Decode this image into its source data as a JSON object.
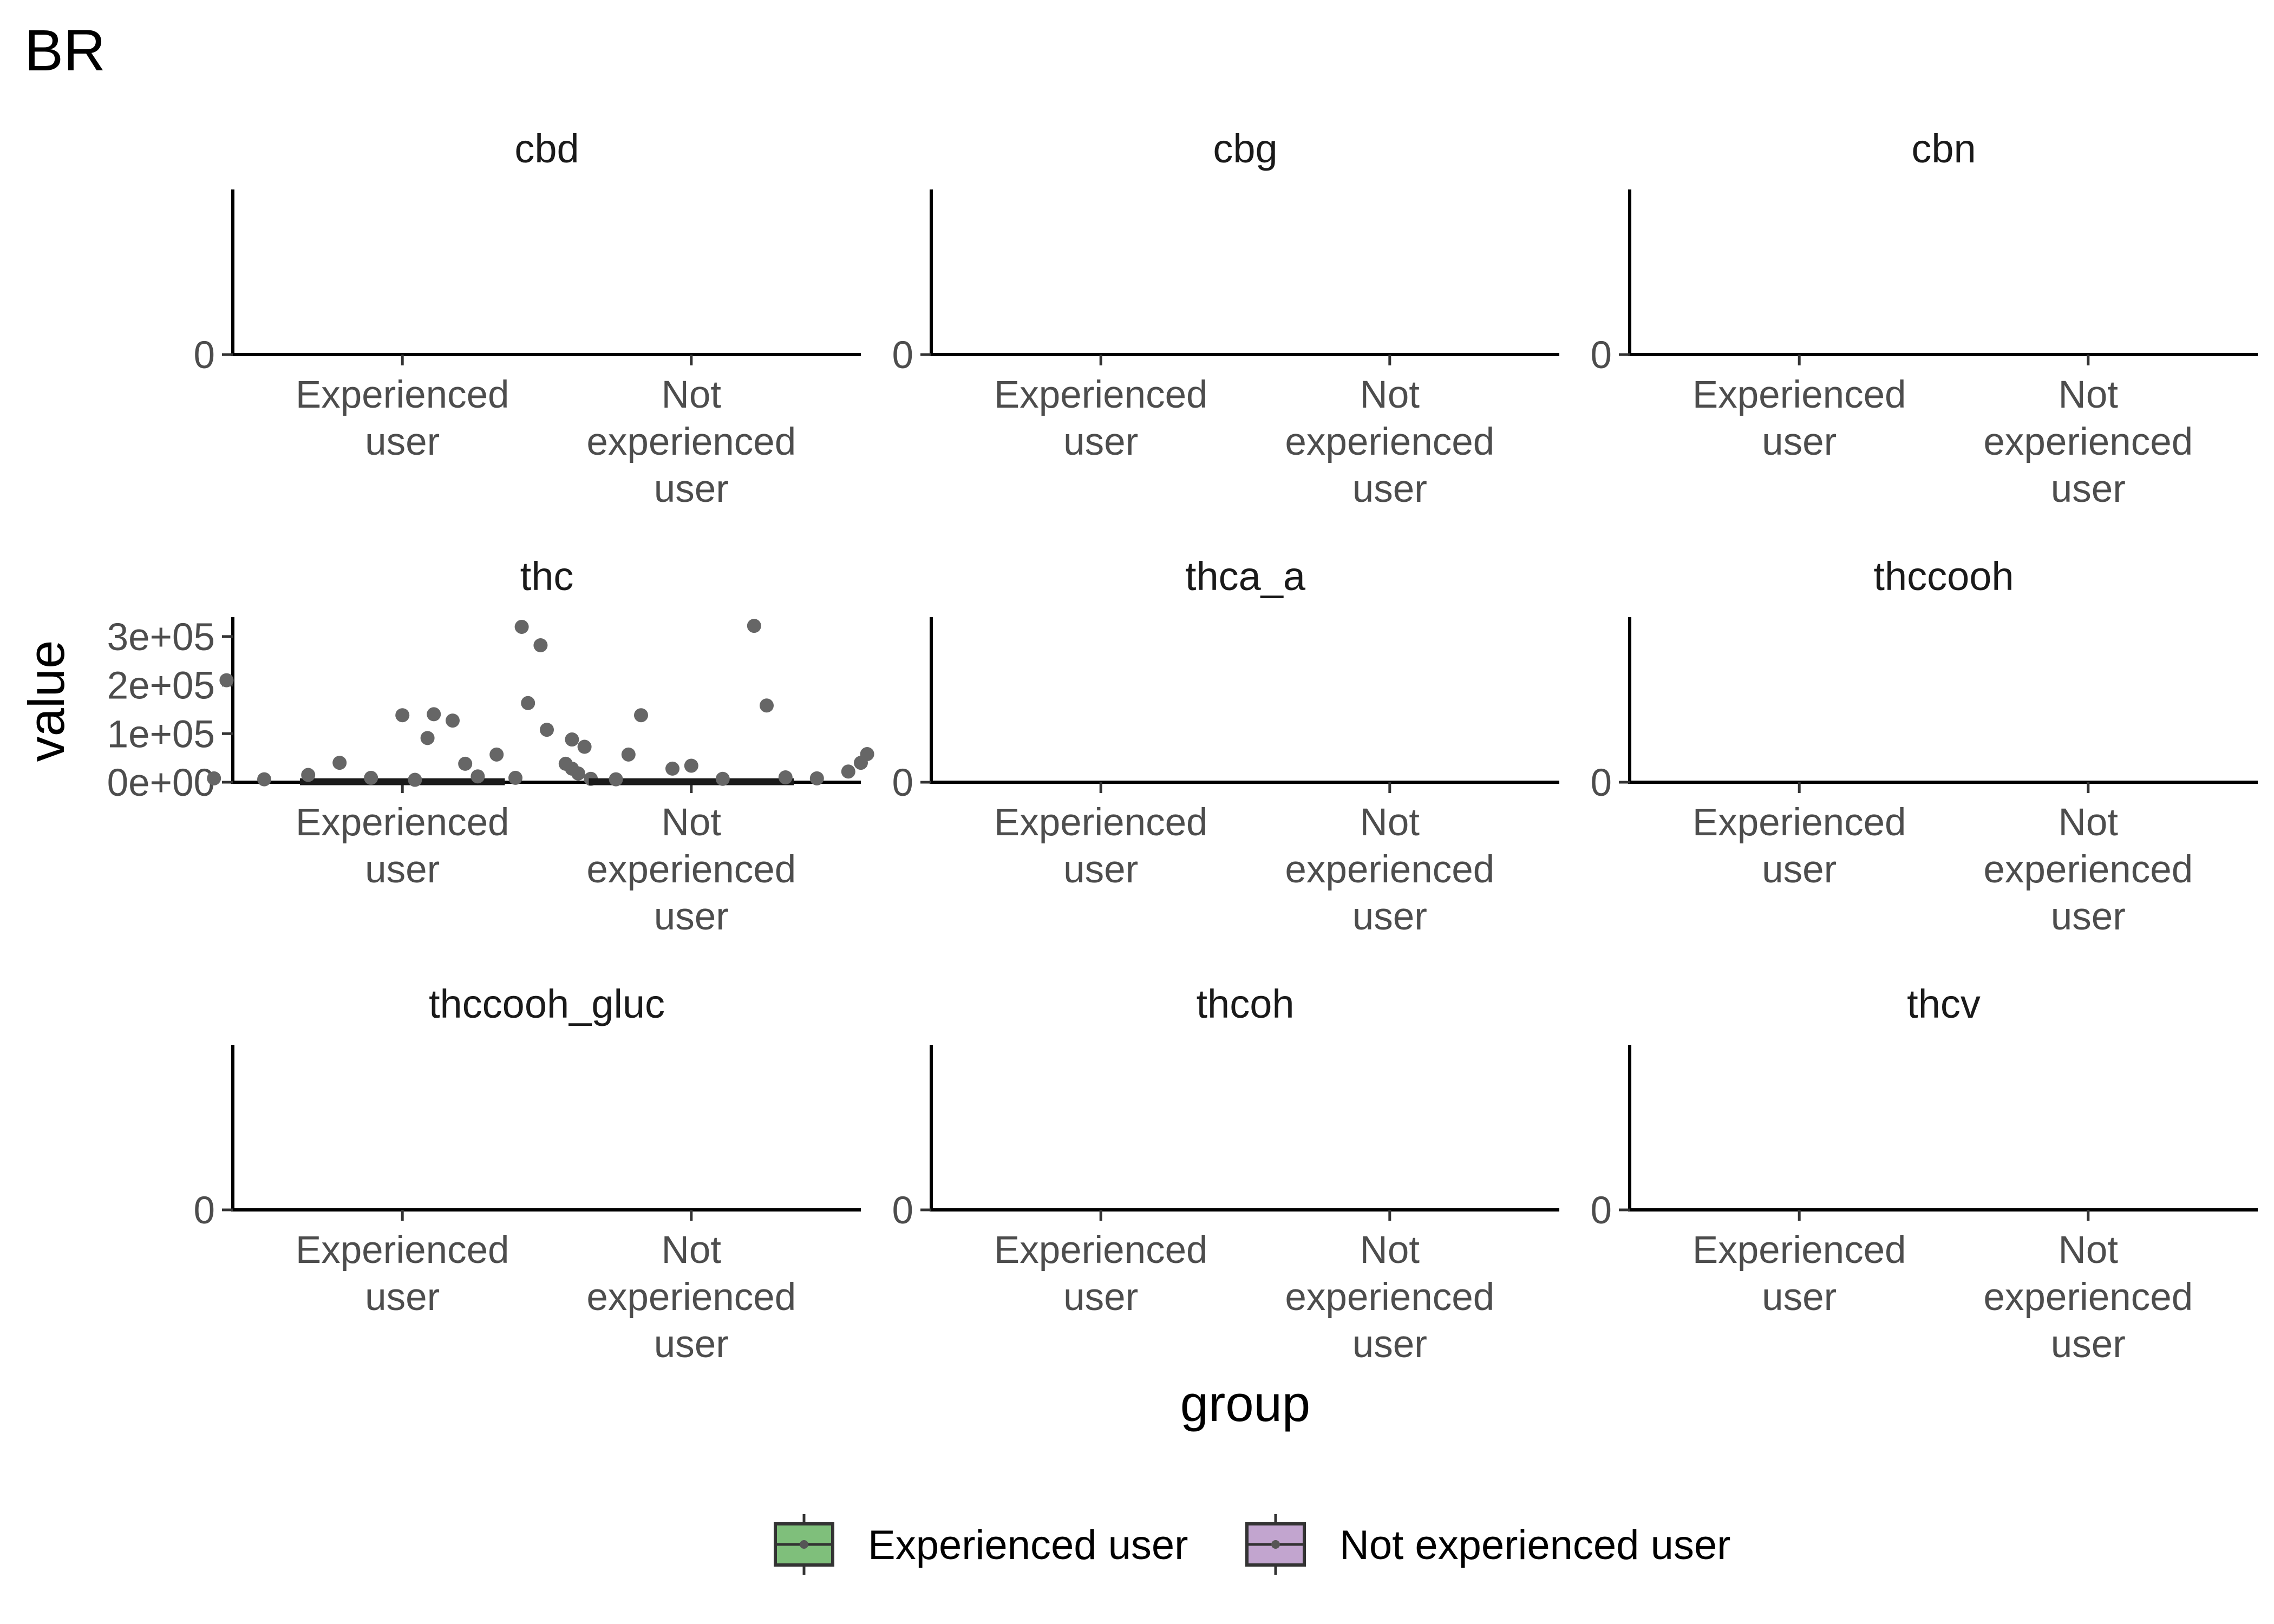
{
  "chart_data": {
    "type": "box",
    "title": "BR",
    "xlabel": "group",
    "ylabel": "value",
    "categories": [
      "Experienced user",
      "Not experienced user"
    ],
    "category_tick_lines": [
      [
        "Experienced",
        "user"
      ],
      [
        "Not",
        "experienced",
        "user"
      ]
    ],
    "legend": {
      "position": "bottom",
      "items": [
        {
          "label": "Experienced user",
          "color": "#7fbf7b"
        },
        {
          "label": "Not experienced user",
          "color": "#c2a5cf"
        }
      ]
    },
    "point_color": "#666666",
    "box_line_color": "#1a1a1a",
    "facets": [
      {
        "label": "cbd",
        "y_ticks": [
          "0"
        ],
        "empty": true
      },
      {
        "label": "cbg",
        "y_ticks": [
          "0"
        ],
        "empty": true
      },
      {
        "label": "cbn",
        "y_ticks": [
          "0"
        ],
        "empty": true
      },
      {
        "label": "thc",
        "empty": false,
        "ylim": [
          0,
          340000
        ],
        "y_tick_values": [
          0,
          100000,
          200000,
          300000
        ],
        "y_ticks": [
          "0e+00",
          "1e+05",
          "2e+05",
          "3e+05"
        ],
        "groups": [
          {
            "category": "Experienced user",
            "box": {
              "q1": 0,
              "median": 500,
              "q3": 2000,
              "whisker_low": 0,
              "whisker_high": 5000
            },
            "points": [
              {
                "x": -0.28,
                "y": 210000
              },
              {
                "x": 0.19,
                "y": 320000
              },
              {
                "x": 0.22,
                "y": 282000
              },
              {
                "x": 0.0,
                "y": 138000
              },
              {
                "x": 0.05,
                "y": 140000
              },
              {
                "x": 0.08,
                "y": 127000
              },
              {
                "x": 0.2,
                "y": 163000
              },
              {
                "x": 0.23,
                "y": 108000
              },
              {
                "x": 0.27,
                "y": 88000
              },
              {
                "x": 0.04,
                "y": 91000
              },
              {
                "x": 0.29,
                "y": 73000
              },
              {
                "x": 0.15,
                "y": 57000
              },
              {
                "x": 0.27,
                "y": 28000
              },
              {
                "x": 0.1,
                "y": 38000
              },
              {
                "x": -0.1,
                "y": 40000
              },
              {
                "x": -0.15,
                "y": 15000
              },
              {
                "x": 0.12,
                "y": 12000
              },
              {
                "x": -0.3,
                "y": 8000
              },
              {
                "x": -0.22,
                "y": 6000
              },
              {
                "x": -0.05,
                "y": 9000
              },
              {
                "x": 0.3,
                "y": 7000
              },
              {
                "x": 0.02,
                "y": 5000
              }
            ]
          },
          {
            "category": "Not experienced user",
            "box": {
              "q1": 0,
              "median": 500,
              "q3": 2000,
              "whisker_low": 0,
              "whisker_high": 5000
            },
            "points": [
              {
                "x": 0.1,
                "y": 322000
              },
              {
                "x": 0.12,
                "y": 158000
              },
              {
                "x": -0.08,
                "y": 138000
              },
              {
                "x": -0.1,
                "y": 57000
              },
              {
                "x": 0.28,
                "y": 58000
              },
              {
                "x": 0.27,
                "y": 40000
              },
              {
                "x": -0.2,
                "y": 38000
              },
              {
                "x": 0.0,
                "y": 34000
              },
              {
                "x": -0.03,
                "y": 28000
              },
              {
                "x": -0.18,
                "y": 18000
              },
              {
                "x": 0.25,
                "y": 22000
              },
              {
                "x": 0.15,
                "y": 10000
              },
              {
                "x": -0.28,
                "y": 9000
              },
              {
                "x": 0.05,
                "y": 7000
              },
              {
                "x": -0.12,
                "y": 6000
              },
              {
                "x": 0.2,
                "y": 8000
              }
            ]
          }
        ]
      },
      {
        "label": "thca_a",
        "y_ticks": [
          "0"
        ],
        "empty": true
      },
      {
        "label": "thccooh",
        "y_ticks": [
          "0"
        ],
        "empty": true
      },
      {
        "label": "thccooh_gluc",
        "y_ticks": [
          "0"
        ],
        "empty": true
      },
      {
        "label": "thcoh",
        "y_ticks": [
          "0"
        ],
        "empty": true
      },
      {
        "label": "thcv",
        "y_ticks": [
          "0"
        ],
        "empty": true
      }
    ]
  }
}
